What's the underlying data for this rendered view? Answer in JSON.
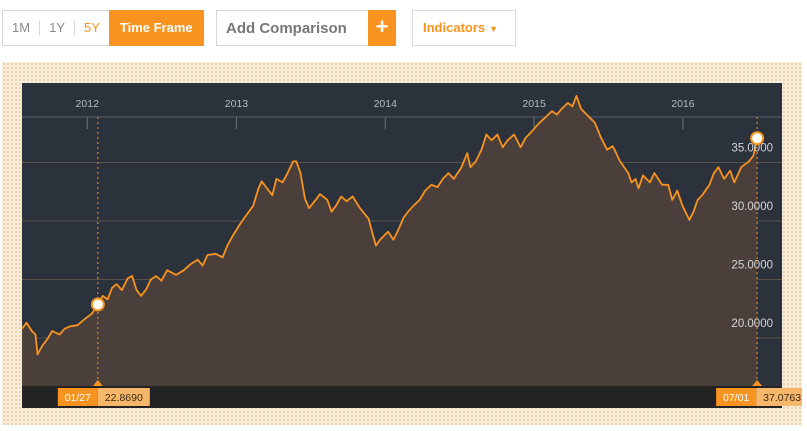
{
  "toolbar": {
    "ranges": [
      {
        "label": "1M",
        "active": false
      },
      {
        "label": "1Y",
        "active": false
      },
      {
        "label": "5Y",
        "active": true
      }
    ],
    "timeframe_label": "Time Frame",
    "comparison_placeholder": "Add Comparison",
    "comparison_add_label": "+",
    "indicators_label": "Indicators",
    "indicators_caret": "▼"
  },
  "colors": {
    "accent": "#f7931e",
    "plot_bg": "#2b323c",
    "area_fill": "#4b3f3b",
    "line": "#f7931e",
    "axis_strip": "#232323"
  },
  "chart_data": {
    "type": "area",
    "x_axis_labels": [
      "2012",
      "2013",
      "2014",
      "2015",
      "2016"
    ],
    "y_ticks": [
      20,
      25,
      30,
      35
    ],
    "y_tick_labels": [
      "20.0000",
      "25.0000",
      "30.0000",
      "35.0000"
    ],
    "ylim": [
      15.9,
      41.8
    ],
    "xlim": [
      "2011-07-25",
      "2016-08-31"
    ],
    "series": [
      {
        "points": [
          [
            "2011-07-25",
            20.8
          ],
          [
            "2011-08-05",
            21.3
          ],
          [
            "2011-08-18",
            20.6
          ],
          [
            "2011-08-27",
            20.3
          ],
          [
            "2011-09-01",
            18.6
          ],
          [
            "2011-09-12",
            19.3
          ],
          [
            "2011-09-25",
            19.9
          ],
          [
            "2011-10-07",
            20.6
          ],
          [
            "2011-10-25",
            20.3
          ],
          [
            "2011-11-07",
            20.8
          ],
          [
            "2011-11-20",
            21.0
          ],
          [
            "2011-12-08",
            21.1
          ],
          [
            "2011-12-25",
            21.6
          ],
          [
            "2012-01-13",
            22.1
          ],
          [
            "2012-01-27",
            22.869
          ],
          [
            "2012-02-08",
            23.6
          ],
          [
            "2012-02-20",
            23.3
          ],
          [
            "2012-03-02",
            24.3
          ],
          [
            "2012-03-13",
            24.6
          ],
          [
            "2012-03-26",
            24.1
          ],
          [
            "2012-04-09",
            25.1
          ],
          [
            "2012-04-20",
            25.3
          ],
          [
            "2012-05-01",
            24.1
          ],
          [
            "2012-05-12",
            23.6
          ],
          [
            "2012-05-25",
            24.2
          ],
          [
            "2012-06-05",
            25.0
          ],
          [
            "2012-06-18",
            25.3
          ],
          [
            "2012-07-01",
            24.9
          ],
          [
            "2012-07-15",
            25.8
          ],
          [
            "2012-08-06",
            25.4
          ],
          [
            "2012-08-25",
            25.8
          ],
          [
            "2012-09-10",
            26.3
          ],
          [
            "2012-09-28",
            26.7
          ],
          [
            "2012-10-10",
            26.2
          ],
          [
            "2012-10-22",
            27.1
          ],
          [
            "2012-11-11",
            27.2
          ],
          [
            "2012-11-28",
            26.9
          ],
          [
            "2012-12-11",
            28.0
          ],
          [
            "2012-12-24",
            28.8
          ],
          [
            "2013-01-09",
            29.7
          ],
          [
            "2013-01-27",
            30.6
          ],
          [
            "2013-02-11",
            31.3
          ],
          [
            "2013-02-24",
            32.8
          ],
          [
            "2013-03-04",
            33.4
          ],
          [
            "2013-03-17",
            32.8
          ],
          [
            "2013-03-30",
            32.2
          ],
          [
            "2013-04-09",
            33.6
          ],
          [
            "2013-04-24",
            33.3
          ],
          [
            "2013-05-05",
            34.0
          ],
          [
            "2013-05-20",
            35.1
          ],
          [
            "2013-05-28",
            35.1
          ],
          [
            "2013-06-07",
            34.1
          ],
          [
            "2013-06-18",
            31.9
          ],
          [
            "2013-06-28",
            31.1
          ],
          [
            "2013-07-14",
            31.8
          ],
          [
            "2013-07-25",
            32.3
          ],
          [
            "2013-08-12",
            31.8
          ],
          [
            "2013-08-22",
            30.8
          ],
          [
            "2013-09-02",
            31.3
          ],
          [
            "2013-09-15",
            32.1
          ],
          [
            "2013-09-28",
            31.7
          ],
          [
            "2013-10-13",
            32.1
          ],
          [
            "2013-10-31",
            31.1
          ],
          [
            "2013-11-21",
            30.2
          ],
          [
            "2013-12-01",
            28.9
          ],
          [
            "2013-12-09",
            27.9
          ],
          [
            "2013-12-19",
            28.4
          ],
          [
            "2014-01-08",
            29.1
          ],
          [
            "2014-01-21",
            28.4
          ],
          [
            "2014-02-04",
            29.4
          ],
          [
            "2014-02-15",
            30.3
          ],
          [
            "2014-02-26",
            30.8
          ],
          [
            "2014-03-11",
            31.3
          ],
          [
            "2014-03-26",
            31.8
          ],
          [
            "2014-04-09",
            32.6
          ],
          [
            "2014-04-24",
            33.1
          ],
          [
            "2014-05-09",
            32.9
          ],
          [
            "2014-05-22",
            33.6
          ],
          [
            "2014-06-05",
            34.1
          ],
          [
            "2014-06-18",
            33.6
          ],
          [
            "2014-07-07",
            34.6
          ],
          [
            "2014-07-21",
            35.8
          ],
          [
            "2014-07-29",
            34.6
          ],
          [
            "2014-08-11",
            35.1
          ],
          [
            "2014-08-25",
            36.1
          ],
          [
            "2014-09-06",
            37.4
          ],
          [
            "2014-09-19",
            36.9
          ],
          [
            "2014-10-03",
            37.4
          ],
          [
            "2014-10-16",
            36.3
          ],
          [
            "2014-10-28",
            36.9
          ],
          [
            "2014-11-13",
            37.4
          ],
          [
            "2014-11-29",
            36.3
          ],
          [
            "2014-12-11",
            37.1
          ],
          [
            "2014-12-25",
            37.6
          ],
          [
            "2015-01-14",
            38.4
          ],
          [
            "2015-01-30",
            38.9
          ],
          [
            "2015-02-14",
            39.4
          ],
          [
            "2015-02-26",
            39.1
          ],
          [
            "2015-03-10",
            39.6
          ],
          [
            "2015-03-25",
            40.1
          ],
          [
            "2015-04-05",
            39.8
          ],
          [
            "2015-04-15",
            40.7
          ],
          [
            "2015-04-26",
            39.6
          ],
          [
            "2015-05-10",
            39.1
          ],
          [
            "2015-05-30",
            38.4
          ],
          [
            "2015-06-13",
            37.2
          ],
          [
            "2015-06-29",
            36.1
          ],
          [
            "2015-07-13",
            36.4
          ],
          [
            "2015-07-31",
            35.1
          ],
          [
            "2015-08-20",
            34.1
          ],
          [
            "2015-08-28",
            33.3
          ],
          [
            "2015-09-07",
            33.6
          ],
          [
            "2015-09-14",
            32.8
          ],
          [
            "2015-09-25",
            33.9
          ],
          [
            "2015-10-12",
            33.3
          ],
          [
            "2015-10-23",
            34.1
          ],
          [
            "2015-11-11",
            33.1
          ],
          [
            "2015-11-26",
            33.1
          ],
          [
            "2015-12-06",
            31.8
          ],
          [
            "2015-12-18",
            32.6
          ],
          [
            "2015-12-31",
            31.3
          ],
          [
            "2016-01-07",
            30.8
          ],
          [
            "2016-01-17",
            30.1
          ],
          [
            "2016-01-27",
            30.8
          ],
          [
            "2016-02-06",
            31.8
          ],
          [
            "2016-02-17",
            32.2
          ],
          [
            "2016-03-06",
            33.1
          ],
          [
            "2016-03-17",
            34.1
          ],
          [
            "2016-03-28",
            34.6
          ],
          [
            "2016-04-11",
            33.6
          ],
          [
            "2016-04-26",
            34.3
          ],
          [
            "2016-05-06",
            33.3
          ],
          [
            "2016-05-23",
            34.6
          ],
          [
            "2016-06-11",
            35.1
          ],
          [
            "2016-06-22",
            35.6
          ],
          [
            "2016-07-01",
            37.0763
          ]
        ]
      }
    ],
    "cursors": [
      {
        "date": "2012-01-27",
        "date_label": "01/27",
        "value": 22.869,
        "value_label": "22.8690"
      },
      {
        "date": "2016-07-01",
        "date_label": "07/01",
        "value": 37.0763,
        "value_label": "37.0763"
      }
    ]
  }
}
